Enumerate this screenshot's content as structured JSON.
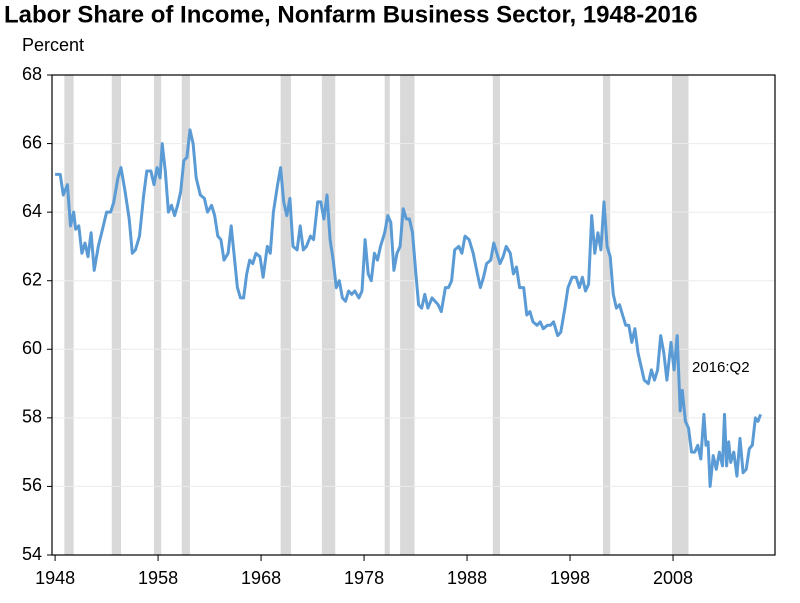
{
  "chart_data": {
    "type": "line",
    "title": "Labor Share of Income, Nonfarm Business Sector, 1948-2016",
    "y_label": "Percent",
    "annotation": "2016:Q2",
    "color": "#5b9bd5",
    "recession_color": "#d9d9d9",
    "grid": true,
    "xlim": [
      1947.7,
      2017.9
    ],
    "ylim": [
      54,
      68
    ],
    "xticks": [
      1948,
      1958,
      1968,
      1978,
      1988,
      1998,
      2008
    ],
    "yticks": [
      54,
      56,
      58,
      60,
      62,
      64,
      66,
      68
    ],
    "recessions": [
      [
        1948.9,
        1949.8
      ],
      [
        1953.5,
        1954.4
      ],
      [
        1957.6,
        1958.3
      ],
      [
        1960.3,
        1961.1
      ],
      [
        1969.9,
        1970.9
      ],
      [
        1973.9,
        1975.2
      ],
      [
        1980.0,
        1980.5
      ],
      [
        1981.5,
        1982.9
      ],
      [
        1990.5,
        1991.2
      ],
      [
        2001.2,
        2001.9
      ],
      [
        2007.9,
        2009.5
      ]
    ],
    "x": [
      1948.0,
      1948.5,
      1948.8,
      1949.2,
      1949.5,
      1949.8,
      1950.0,
      1950.3,
      1950.6,
      1950.9,
      1951.2,
      1951.5,
      1951.8,
      1952.2,
      1952.6,
      1953.0,
      1953.4,
      1953.7,
      1954.1,
      1954.4,
      1954.8,
      1955.2,
      1955.5,
      1955.8,
      1956.2,
      1956.6,
      1956.9,
      1957.3,
      1957.6,
      1957.9,
      1958.2,
      1958.4,
      1958.7,
      1959.0,
      1959.3,
      1959.6,
      1959.9,
      1960.2,
      1960.5,
      1960.8,
      1961.1,
      1961.4,
      1961.7,
      1962.1,
      1962.5,
      1962.8,
      1963.2,
      1963.5,
      1963.8,
      1964.1,
      1964.4,
      1964.8,
      1965.1,
      1965.4,
      1965.7,
      1966.0,
      1966.3,
      1966.6,
      1966.9,
      1967.2,
      1967.5,
      1967.9,
      1968.2,
      1968.6,
      1968.9,
      1969.2,
      1969.6,
      1969.9,
      1970.2,
      1970.5,
      1970.8,
      1971.1,
      1971.5,
      1971.8,
      1972.1,
      1972.4,
      1972.8,
      1973.1,
      1973.5,
      1973.8,
      1974.1,
      1974.4,
      1974.7,
      1975.0,
      1975.3,
      1975.6,
      1975.9,
      1976.2,
      1976.5,
      1976.8,
      1977.1,
      1977.5,
      1977.8,
      1978.1,
      1978.4,
      1978.7,
      1979.0,
      1979.3,
      1979.6,
      1980.0,
      1980.3,
      1980.6,
      1980.9,
      1981.2,
      1981.5,
      1981.8,
      1982.1,
      1982.4,
      1982.7,
      1983.0,
      1983.3,
      1983.6,
      1983.9,
      1984.2,
      1984.6,
      1984.9,
      1985.2,
      1985.5,
      1985.9,
      1986.2,
      1986.5,
      1986.8,
      1987.2,
      1987.5,
      1987.8,
      1988.2,
      1988.6,
      1989.0,
      1989.3,
      1989.6,
      1989.9,
      1990.3,
      1990.6,
      1990.9,
      1991.2,
      1991.5,
      1991.8,
      1992.2,
      1992.5,
      1992.8,
      1993.1,
      1993.5,
      1993.8,
      1994.1,
      1994.4,
      1994.8,
      1995.1,
      1995.4,
      1995.8,
      1996.1,
      1996.4,
      1996.8,
      1997.1,
      1997.5,
      1997.8,
      1998.2,
      1998.6,
      1998.9,
      1999.2,
      1999.5,
      1999.8,
      2000.1,
      2000.4,
      2000.7,
      2001.0,
      2001.3,
      2001.6,
      2001.9,
      2002.2,
      2002.5,
      2002.8,
      2003.1,
      2003.4,
      2003.7,
      2004.0,
      2004.3,
      2004.6,
      2004.9,
      2005.2,
      2005.6,
      2005.9,
      2006.2,
      2006.5,
      2006.8,
      2007.1,
      2007.4,
      2007.8,
      2008.1,
      2008.4,
      2008.7,
      2008.9,
      2009.2,
      2009.5,
      2009.8,
      2010.1,
      2010.4,
      2010.7,
      2011.0,
      2011.2,
      2011.4,
      2011.6,
      2011.9,
      2012.2,
      2012.5,
      2012.8,
      2013.0,
      2013.2,
      2013.4,
      2013.6,
      2013.9,
      2014.2,
      2014.5,
      2014.8,
      2015.1,
      2015.4,
      2015.7,
      2016.0,
      2016.25,
      2016.5
    ],
    "values": [
      65.1,
      65.1,
      64.5,
      64.8,
      63.6,
      64.0,
      63.5,
      63.6,
      62.8,
      63.1,
      62.7,
      63.4,
      62.3,
      63.0,
      63.5,
      64.0,
      64.0,
      64.3,
      65.0,
      65.3,
      64.6,
      63.8,
      62.8,
      62.9,
      63.3,
      64.5,
      65.2,
      65.2,
      64.8,
      65.3,
      65.0,
      66.0,
      65.2,
      64.0,
      64.2,
      63.9,
      64.2,
      64.6,
      65.5,
      65.6,
      66.4,
      66.0,
      65.0,
      64.5,
      64.4,
      64.0,
      64.2,
      63.9,
      63.3,
      63.2,
      62.6,
      62.8,
      63.6,
      62.7,
      61.8,
      61.5,
      61.5,
      62.2,
      62.6,
      62.5,
      62.8,
      62.7,
      62.1,
      63.0,
      62.8,
      64.0,
      64.8,
      65.3,
      64.3,
      63.9,
      64.4,
      63.0,
      62.9,
      63.6,
      62.9,
      63.0,
      63.3,
      63.2,
      64.3,
      64.3,
      63.8,
      64.5,
      63.2,
      62.6,
      61.8,
      62.0,
      61.5,
      61.4,
      61.7,
      61.6,
      61.7,
      61.5,
      61.7,
      63.2,
      62.2,
      62.0,
      62.8,
      62.6,
      63.0,
      63.4,
      63.9,
      63.7,
      62.3,
      62.8,
      63.0,
      64.1,
      63.8,
      63.8,
      63.4,
      62.3,
      61.3,
      61.2,
      61.6,
      61.2,
      61.5,
      61.4,
      61.3,
      61.1,
      61.8,
      61.8,
      62.0,
      62.9,
      63.0,
      62.8,
      63.3,
      63.2,
      62.8,
      62.2,
      61.8,
      62.1,
      62.5,
      62.6,
      63.1,
      62.8,
      62.5,
      62.7,
      63.0,
      62.8,
      62.2,
      62.4,
      61.8,
      61.8,
      61.0,
      61.1,
      60.8,
      60.7,
      60.8,
      60.6,
      60.7,
      60.7,
      60.8,
      60.4,
      60.5,
      61.2,
      61.8,
      62.1,
      62.1,
      61.8,
      62.1,
      61.7,
      61.9,
      63.9,
      62.8,
      63.4,
      62.9,
      64.3,
      63.0,
      62.7,
      61.6,
      61.2,
      61.3,
      61.0,
      60.7,
      60.7,
      60.2,
      60.6,
      59.9,
      59.5,
      59.1,
      59.0,
      59.4,
      59.1,
      59.4,
      60.4,
      59.9,
      59.1,
      60.2,
      59.4,
      60.4,
      58.2,
      58.8,
      57.9,
      57.7,
      57.0,
      57.0,
      57.2,
      56.8,
      58.1,
      57.2,
      57.3,
      56.0,
      56.9,
      56.5,
      57.0,
      56.6,
      58.1,
      56.6,
      57.3,
      56.7,
      57.0,
      56.3,
      57.4,
      56.4,
      56.5,
      57.1,
      57.2,
      58.0,
      57.9,
      58.1
    ]
  }
}
